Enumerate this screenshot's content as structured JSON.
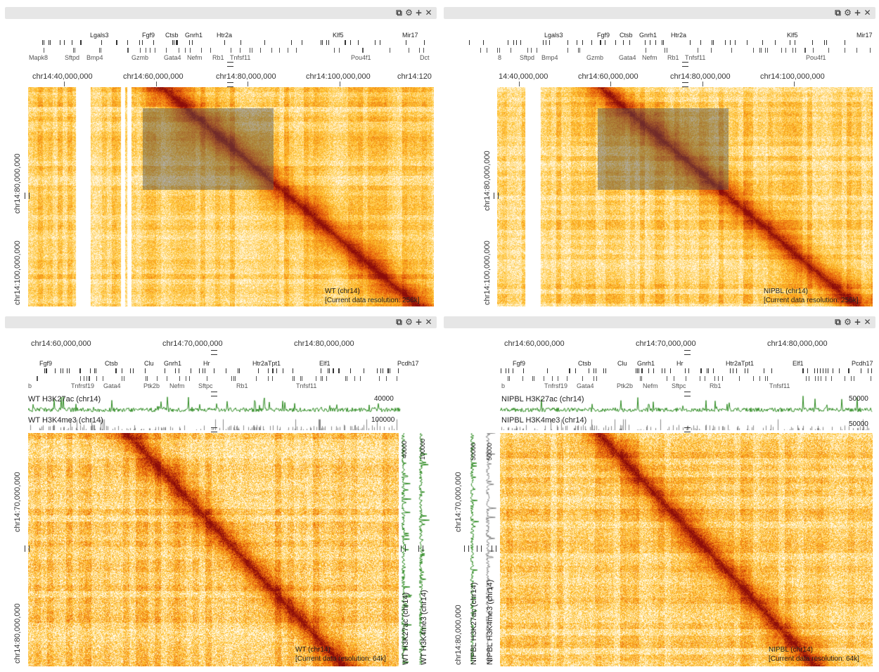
{
  "panel_icons": [
    "copy-icon",
    "gear-icon",
    "plus-icon",
    "close-icon"
  ],
  "panel_icon_glyphs": {
    "copy-icon": "⧉",
    "gear-icon": "⚙",
    "plus-icon": "+",
    "close-icon": "✕"
  },
  "top_left": {
    "genes_upper": [
      "Lgals3",
      "Fgf9",
      "Ctsb",
      "Gnrh1",
      "Htr2a",
      "Klf5",
      "Mir17"
    ],
    "genes_lower": [
      "Mapk8",
      "Sftpd",
      "Bmp4",
      "Gzmb",
      "Gata4",
      "Nefm",
      "Rb1",
      "Tnfsf11",
      "Pou4f1",
      "Dct"
    ],
    "x_coords": [
      "chr14:40,000,000",
      "chr14:60,000,000",
      "chr14:80,000,000",
      "chr14:100,000,000",
      "chr14:120"
    ],
    "y_coords": [
      "chr14:80,000,000",
      "chr14:100,000,000"
    ],
    "dataset": "WT (chr14)",
    "resolution": "[Current data resolution: 256k]"
  },
  "top_right": {
    "genes_upper": [
      "Lgals3",
      "Fgf9",
      "Ctsb",
      "Gnrh1",
      "Htr2a",
      "Klf5",
      "Mir17"
    ],
    "genes_lower": [
      "8",
      "Sftpd",
      "Bmp4",
      "Gzmb",
      "Gata4",
      "Nefm",
      "Rb1",
      "Tnfsf11",
      "Pou4f1"
    ],
    "x_coords": [
      "14:40,000,000",
      "chr14:60,000,000",
      "chr14:80,000,000",
      "chr14:100,000,000"
    ],
    "y_coords": [
      "chr14:80,000,000",
      "chr14:100,000,000"
    ],
    "dataset": "NIPBL (chr14)",
    "resolution": "[Current data resolution: 256k]"
  },
  "bottom_left": {
    "x_coords": [
      "chr14:60,000,000",
      "chr14:70,000,000",
      "chr14:80,000,000"
    ],
    "genes_upper": [
      "Fgf9",
      "Ctsb",
      "Clu",
      "Gnrh1",
      "Hr",
      "Htr2aTpt1",
      "Elf1",
      "Pcdh17"
    ],
    "genes_lower": [
      "b",
      "Tnfrsf19",
      "Gata4",
      "Ptk2b",
      "Nefm",
      "Sftpc",
      "Rb1",
      "Tnfsf11"
    ],
    "track1_label": "WT H3K27ac (chr14)",
    "track1_max": "40000",
    "track2_label": "WT H3K4me3 (chr14)",
    "track2_max": "100000",
    "y_coords": [
      "chr14:70,000,000",
      "chr14:80,000,000"
    ],
    "vtrack1_label": "WT H3K27ac (chr14)",
    "vtrack1_max": "40000",
    "vtrack2_label": "WT H3K4me3 (chr14)",
    "vtrack2_max": "100000",
    "dataset": "WT (chr14)",
    "resolution": "[Current data resolution: 64k]"
  },
  "bottom_right": {
    "x_coords": [
      "chr14:60,000,000",
      "chr14:70,000,000",
      "chr14:80,000,000"
    ],
    "genes_upper": [
      "Fgf9",
      "Ctsb",
      "Clu",
      "Gnrh1",
      "Hr",
      "Htr2aTpt1",
      "Elf1",
      "Pcdh17"
    ],
    "genes_lower": [
      "b",
      "Tnfrsf19",
      "Gata4",
      "Ptk2b",
      "Nefm",
      "Sftpc",
      "Rb1",
      "Tnfsf11"
    ],
    "track1_label": "NIPBL H3K27ac (chr14)",
    "track1_max": "50000",
    "track2_label": "NIPBL H3K4me3 (chr14)",
    "track2_max": "50000",
    "y_coords": [
      "chr14:70,000,000",
      "chr14:80,000,000"
    ],
    "vtrack1_label": "NIPBL H3K27ac (chr14)",
    "vtrack1_max": "50000",
    "vtrack2_label": "NIPBL H3K4me3 (chr14)",
    "vtrack2_max": "50000",
    "dataset": "NIPBL (chr14)",
    "resolution": "[Current data resolution: 64k]"
  },
  "colors": {
    "heat_low": "#fff6e0",
    "heat_mid": "#f7a623",
    "heat_high": "#a8120e",
    "track_green": "#2e8b22",
    "track_gray": "#888888",
    "header_bg": "#e6e6e6"
  }
}
